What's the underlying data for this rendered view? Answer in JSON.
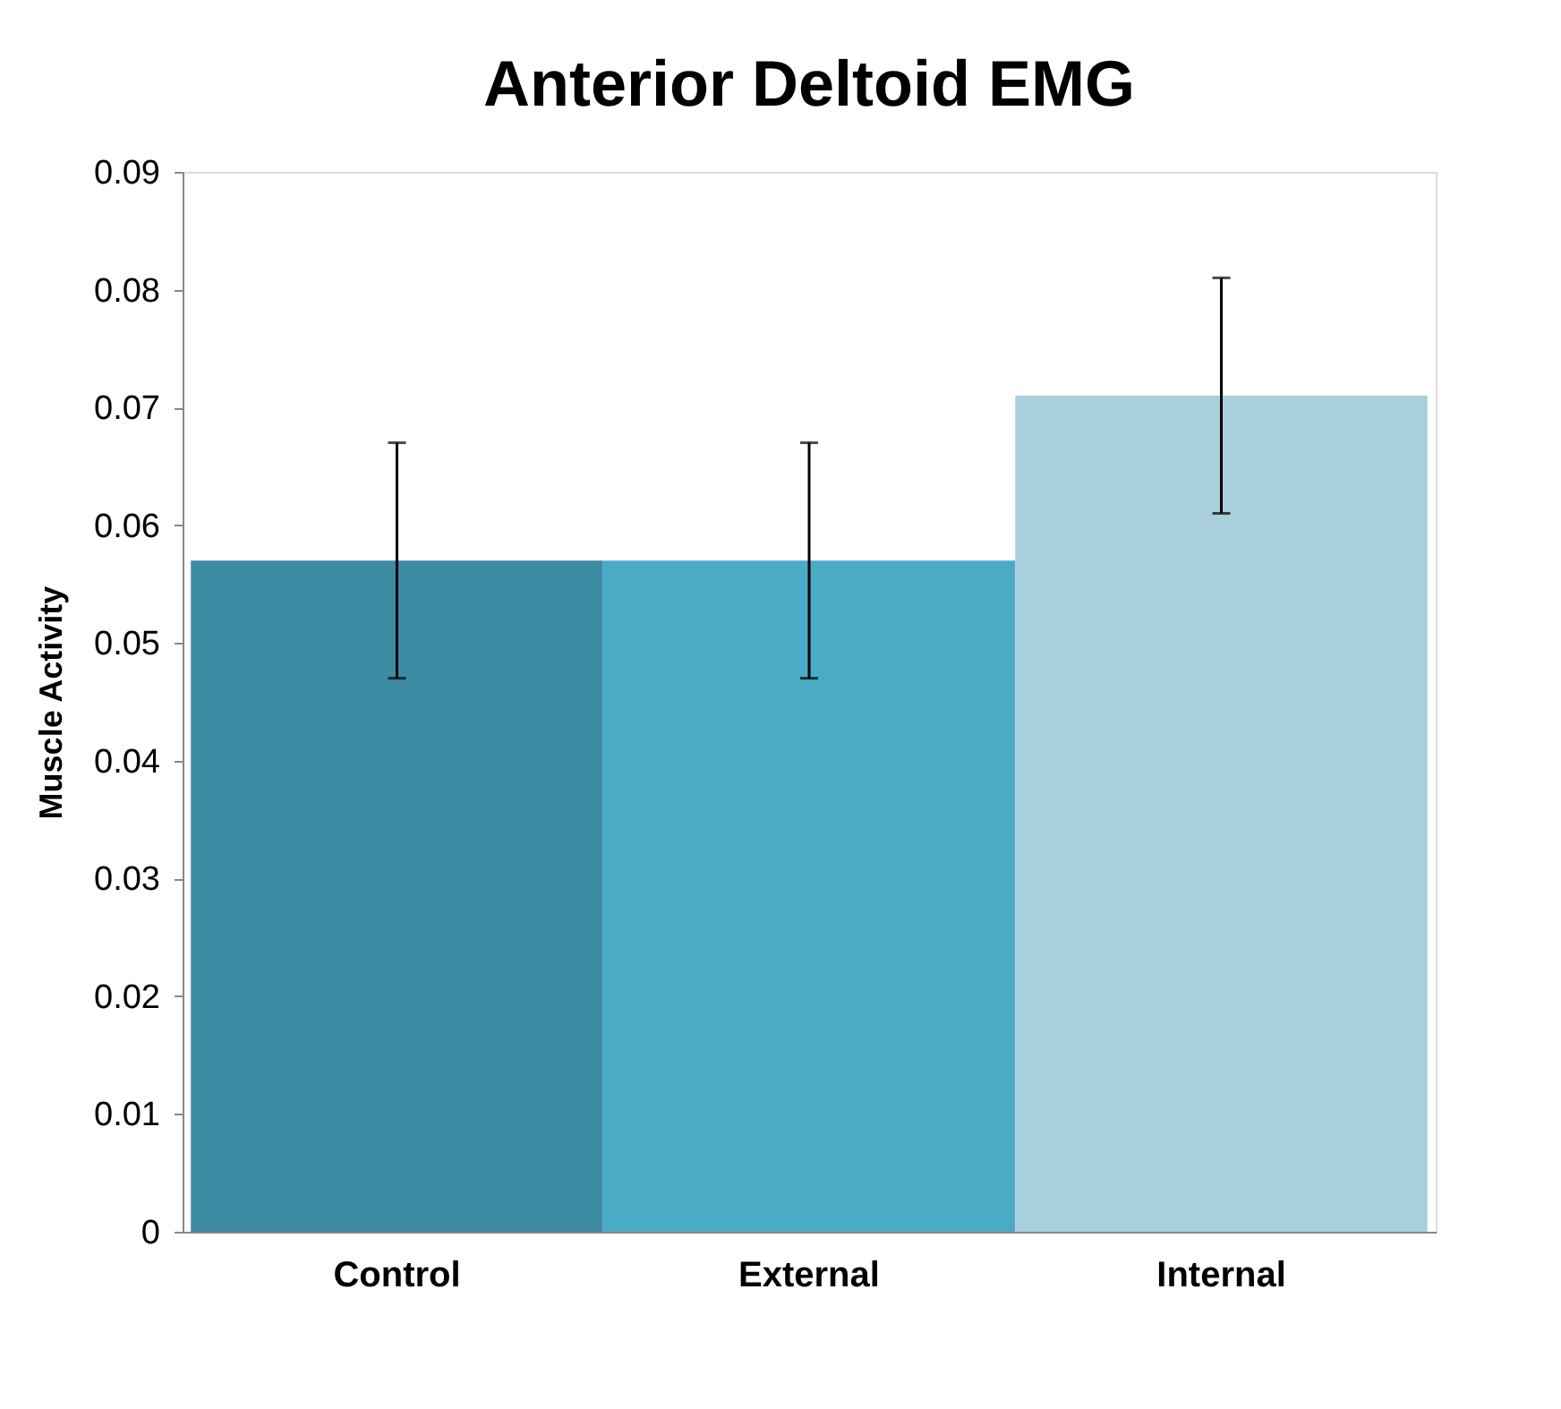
{
  "chart_data": {
    "type": "bar",
    "title": "Anterior Deltoid EMG",
    "ylabel": "Muscle Activity",
    "categories": [
      "Control",
      "External",
      "Internal"
    ],
    "values": [
      0.057,
      0.057,
      0.071
    ],
    "errors": [
      0.01,
      0.01,
      0.01
    ],
    "colors": [
      "#3d8ba3",
      "#4aabc6",
      "#a9cfdc"
    ],
    "ylim": [
      0,
      0.09
    ],
    "yticks": [
      0,
      0.01,
      0.02,
      0.03,
      0.04,
      0.05,
      0.06,
      0.07,
      0.08,
      0.09
    ],
    "grid": false,
    "legend": false
  }
}
